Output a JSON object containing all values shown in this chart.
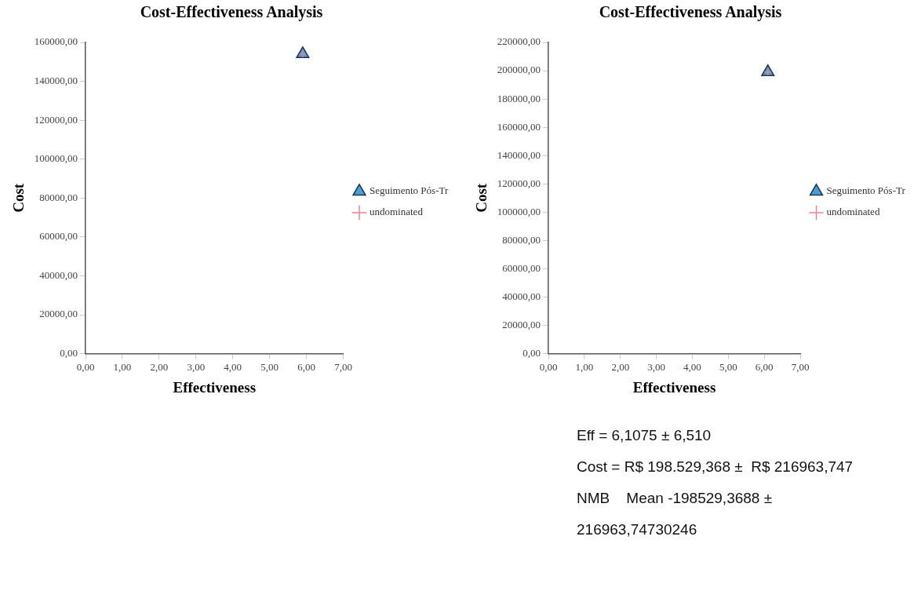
{
  "chart_data": [
    {
      "type": "scatter",
      "title": "Cost-Effectiveness Analysis",
      "xlabel": "Effectiveness",
      "ylabel": "Cost",
      "legend": "right",
      "grid": false,
      "xlim": [
        0,
        7
      ],
      "xticks": [
        {
          "value": 0,
          "label": "0,00"
        },
        {
          "value": 1,
          "label": "1,00"
        },
        {
          "value": 2,
          "label": "2,00"
        },
        {
          "value": 3,
          "label": "3,00"
        },
        {
          "value": 4,
          "label": "4,00"
        },
        {
          "value": 5,
          "label": "5,00"
        },
        {
          "value": 6,
          "label": "6,00"
        },
        {
          "value": 7,
          "label": "7,00"
        }
      ],
      "x": [
        5.9
      ],
      "ylim": [
        0,
        160000
      ],
      "yticks": [
        {
          "value": 0,
          "label": "0,00"
        },
        {
          "value": 20000,
          "label": "20000,00"
        },
        {
          "value": 40000,
          "label": "40000,00"
        },
        {
          "value": 60000,
          "label": "60000,00"
        },
        {
          "value": 80000,
          "label": "80000,00"
        },
        {
          "value": 100000,
          "label": "100000,00"
        },
        {
          "value": 120000,
          "label": "120000,00"
        },
        {
          "value": 140000,
          "label": "140000,00"
        },
        {
          "value": 160000,
          "label": "160000,00"
        }
      ],
      "series": [
        {
          "name": "Seguimento Pós-Tr",
          "color": "#4a9fd6",
          "marker": "triangle",
          "values": [
            154000
          ]
        },
        {
          "name": "undominated",
          "color": "#f08090",
          "marker": "cross",
          "values": [
            154000
          ]
        }
      ]
    },
    {
      "type": "scatter",
      "title": "Cost-Effectiveness Analysis",
      "xlabel": "Effectiveness",
      "ylabel": "Cost",
      "legend": "right",
      "grid": false,
      "xlim": [
        0,
        7
      ],
      "xticks": [
        {
          "value": 0,
          "label": "0,00"
        },
        {
          "value": 1,
          "label": "1,00"
        },
        {
          "value": 2,
          "label": "2,00"
        },
        {
          "value": 3,
          "label": "3,00"
        },
        {
          "value": 4,
          "label": "4,00"
        },
        {
          "value": 5,
          "label": "5,00"
        },
        {
          "value": 6,
          "label": "6,00"
        },
        {
          "value": 7,
          "label": "7,00"
        }
      ],
      "x": [
        6.1
      ],
      "ylim": [
        0,
        220000
      ],
      "yticks": [
        {
          "value": 0,
          "label": "0,00"
        },
        {
          "value": 20000,
          "label": "20000,00"
        },
        {
          "value": 40000,
          "label": "40000,00"
        },
        {
          "value": 60000,
          "label": "60000,00"
        },
        {
          "value": 80000,
          "label": "80000,00"
        },
        {
          "value": 100000,
          "label": "100000,00"
        },
        {
          "value": 120000,
          "label": "120000,00"
        },
        {
          "value": 140000,
          "label": "140000,00"
        },
        {
          "value": 160000,
          "label": "160000,00"
        },
        {
          "value": 180000,
          "label": "180000,00"
        },
        {
          "value": 200000,
          "label": "200000,00"
        },
        {
          "value": 220000,
          "label": "220000,00"
        }
      ],
      "series": [
        {
          "name": "Seguimento Pós-Tr",
          "color": "#4a9fd6",
          "marker": "triangle",
          "values": [
            199000
          ]
        },
        {
          "name": "undominated",
          "color": "#f08090",
          "marker": "cross",
          "values": [
            199000
          ]
        }
      ]
    },
    {
      "type": "other",
      "annotations": [
        "Eff = 6,1075 ± 6,510",
        "Cost = R$ 198.529,368 ±  R$ 216963,747",
        "NMB    Mean -198529,3688 ± 216963,74730246"
      ]
    }
  ]
}
